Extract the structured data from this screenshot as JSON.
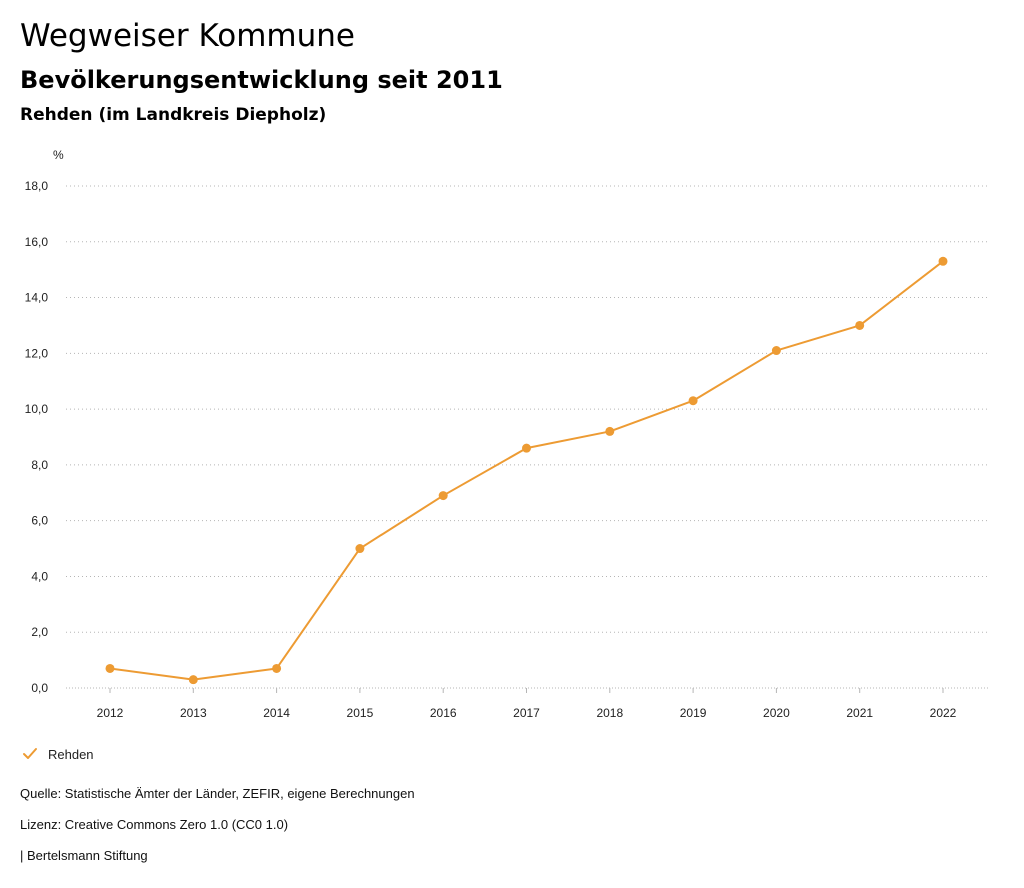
{
  "header": {
    "title": "Wegweiser Kommune",
    "subtitle": "Bevölkerungsentwicklung seit 2011",
    "region": "Rehden (im Landkreis Diepholz)"
  },
  "legend": {
    "label": "Rehden",
    "icon": "checkmark-icon"
  },
  "footer": {
    "source": "Quelle: Statistische Ämter der Länder, ZEFIR, eigene Berechnungen",
    "license": "Lizenz: Creative Commons Zero 1.0 (CC0 1.0)",
    "publisher": "| Bertelsmann Stiftung"
  },
  "colors": {
    "series": "#ed9b33",
    "grid": "#b5b5b5",
    "text": "#222222"
  },
  "chart_data": {
    "type": "line",
    "title": "Bevölkerungsentwicklung seit 2011",
    "xlabel": "",
    "ylabel": "%",
    "categories": [
      "2012",
      "2013",
      "2014",
      "2015",
      "2016",
      "2017",
      "2018",
      "2019",
      "2020",
      "2021",
      "2022"
    ],
    "series": [
      {
        "name": "Rehden",
        "values": [
          0.7,
          0.3,
          0.7,
          5.0,
          6.9,
          8.6,
          9.2,
          10.3,
          12.1,
          13.0,
          15.3
        ]
      }
    ],
    "ylim": [
      0,
      18
    ],
    "yticks": [
      0,
      2,
      4,
      6,
      8,
      10,
      12,
      14,
      16,
      18
    ],
    "ytick_labels": [
      "0,0",
      "2,0",
      "4,0",
      "6,0",
      "8,0",
      "10,0",
      "12,0",
      "14,0",
      "16,0",
      "18,0"
    ],
    "grid": true,
    "legend_position": "bottom-left"
  }
}
